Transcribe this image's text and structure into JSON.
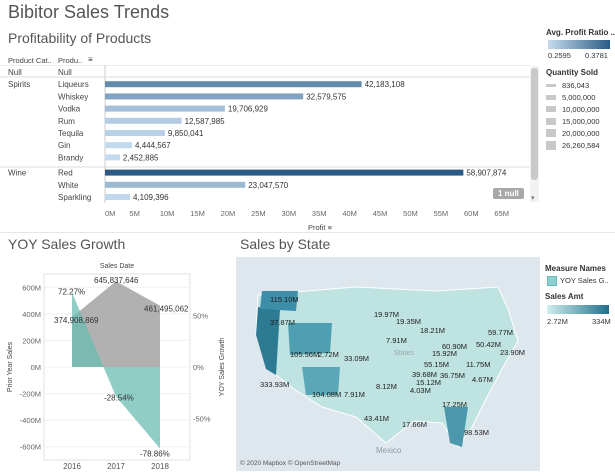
{
  "dashboard": {
    "title": "Bibitor Sales Trends"
  },
  "profitability": {
    "title": "Profitability of Products",
    "col_category": "Product Cat..",
    "col_product": "Produ..",
    "axis_label": "Profit",
    "null_badge": "1 null",
    "rows": [
      {
        "category": "Null",
        "product": "Null",
        "display": "",
        "value": 0
      },
      {
        "category": "Spirits",
        "product": "Liqueurs",
        "display": "42,183,108",
        "value": 42183108
      },
      {
        "category": "",
        "product": "Whiskey",
        "display": "32,579,575",
        "value": 32579575
      },
      {
        "category": "",
        "product": "Vodka",
        "display": "19,706,929",
        "value": 19706929
      },
      {
        "category": "",
        "product": "Rum",
        "display": "12,587,985",
        "value": 12587985
      },
      {
        "category": "",
        "product": "Tequila",
        "display": "9,850,041",
        "value": 9850041
      },
      {
        "category": "",
        "product": "Gin",
        "display": "4,444,567",
        "value": 4444567
      },
      {
        "category": "",
        "product": "Brandy",
        "display": "2,452,885",
        "value": 2452885
      },
      {
        "category": "Wine",
        "product": "Red",
        "display": "58,907,874",
        "value": 58907874
      },
      {
        "category": "",
        "product": "White",
        "display": "23,047,570",
        "value": 23047570
      },
      {
        "category": "",
        "product": "Sparkling",
        "display": "4,109,396",
        "value": 4109396
      }
    ],
    "ticks": [
      "0M",
      "5M",
      "10M",
      "15M",
      "20M",
      "25M",
      "30M",
      "35M",
      "40M",
      "45M",
      "50M",
      "55M",
      "60M",
      "65M"
    ],
    "colors": {
      "low": "#c6dbef",
      "high": "#2b5b84"
    }
  },
  "legend_profit": {
    "title": "Avg. Profit Ratio ..",
    "min": "0.2595",
    "max": "0.3781"
  },
  "legend_qty": {
    "title": "Quantity Sold",
    "items": [
      "836,043",
      "5,000,000",
      "10,000,000",
      "15,000,000",
      "20,000,000",
      "26,260,584"
    ]
  },
  "yoy": {
    "title": "YOY Sales Growth",
    "top_label": "Sales Date",
    "left_axis": "Prior Year Sales",
    "right_axis": "YOY Sales Growth",
    "left_ticks": [
      "600M",
      "400M",
      "200M",
      "0M",
      "-200M",
      "-400M",
      "-600M"
    ],
    "right_ticks": [
      "50%",
      "0%",
      "-50%"
    ],
    "years": [
      "2016",
      "2017",
      "2018"
    ],
    "prior_sales_labels": [
      "374,908,869",
      "645,837,646",
      "461,495,062"
    ],
    "growth_labels": [
      "72.27%",
      "-28.54%",
      "-78.86%"
    ],
    "chart_data": {
      "type": "area",
      "x": [
        "2016",
        "2017",
        "2018"
      ],
      "series": [
        {
          "name": "Prior Year Sales",
          "values": [
            374908869,
            645837646,
            461495062
          ]
        },
        {
          "name": "YOY Sales Growth",
          "values": [
            72.27,
            -28.54,
            -78.86
          ]
        }
      ]
    }
  },
  "map": {
    "title": "Sales by State",
    "credit": "© 2020 Mapbox © OpenStreetMap",
    "country_label": "Mexico",
    "states_label": "States",
    "legend_measure_title": "Measure Names",
    "legend_measure_item": "YOY Sales G..",
    "legend_sales_title": "Sales Amt",
    "legend_sales_min": "2.72M",
    "legend_sales_max": "334M",
    "labels": [
      "115.10M",
      "37.87M",
      "105.56M",
      "2.72M",
      "33.09M",
      "333.93M",
      "104.08M",
      "7.91M",
      "19.97M",
      "19.35M",
      "18.21M",
      "59.77M",
      "50.42M",
      "23.90M",
      "7.91M",
      "15.92M",
      "55.15M",
      "39.68M",
      "60.90M",
      "11.75M",
      "15.12M",
      "8.12M",
      "4.03M",
      "36.75M",
      "4.67M",
      "43.41M",
      "17.66M",
      "17.25M",
      "98.53M"
    ]
  }
}
